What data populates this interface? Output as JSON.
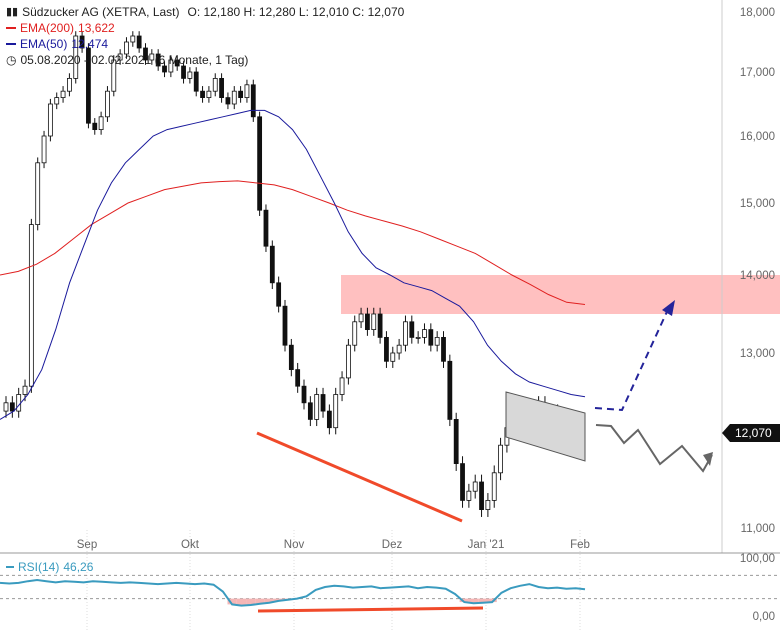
{
  "header": {
    "title": "Südzucker AG (XETRA, Last)",
    "ohlc": "O: 12,180  H: 12,280  L: 12,010  C: 12,070",
    "ema200_label": "EMA(200)",
    "ema200_value": "13,622",
    "ema50_label": "EMA(50)",
    "ema50_value": "12,474",
    "range_text": "05.08.2020 - 02.02.2021  (6 Monate, 1 Tag)"
  },
  "colors": {
    "ema200": "#e02020",
    "ema50": "#1a1a9c",
    "rsi": "#3a9bbf",
    "zone": "#ffc0c0",
    "trendline": "#f04a2a",
    "projection_up": "#24249a",
    "projection_alt": "#666666"
  },
  "price_tag": "12,070",
  "rsi_label": "RSI(14)",
  "rsi_value": "46,26",
  "chart_data": {
    "type": "candlestick",
    "y_axis": {
      "ticks": [
        "18,000",
        "17,000",
        "16,000",
        "15,000",
        "14,000",
        "13,000",
        "12,000",
        "11,000"
      ],
      "ylim": [
        11,
        18
      ]
    },
    "x_axis": {
      "ticks": [
        "Sep",
        "Okt",
        "Nov",
        "Dez",
        "Jan '21",
        "Feb"
      ]
    },
    "rsi_axis": {
      "ticks": [
        "100,00",
        "0,00"
      ]
    },
    "resistance_zone": [
      13.5,
      14.0
    ],
    "close_series": [
      12.4,
      12.3,
      12.5,
      12.6,
      14.7,
      15.6,
      16.0,
      16.5,
      16.6,
      16.7,
      16.9,
      17.6,
      17.4,
      16.2,
      16.1,
      16.3,
      16.7,
      17.2,
      17.3,
      17.5,
      17.6,
      17.4,
      17.2,
      17.3,
      17.1,
      17.0,
      17.2,
      17.1,
      16.9,
      17.0,
      16.7,
      16.6,
      16.7,
      16.9,
      16.6,
      16.5,
      16.7,
      16.6,
      16.8,
      16.3,
      14.9,
      14.4,
      13.9,
      13.6,
      13.1,
      12.8,
      12.6,
      12.4,
      12.2,
      12.5,
      12.3,
      12.1,
      12.5,
      12.7,
      13.1,
      13.4,
      13.5,
      13.3,
      13.5,
      13.2,
      12.9,
      13.0,
      13.1,
      13.4,
      13.2,
      13.2,
      13.3,
      13.1,
      13.2,
      12.9,
      12.2,
      11.7,
      11.3,
      11.4,
      11.5,
      11.2,
      11.3,
      11.6,
      11.9,
      12.1,
      12.4,
      12.3,
      12.2,
      12.3,
      12.4,
      12.2,
      12.3,
      12.1,
      12.2,
      12.0,
      12.1,
      12.07
    ],
    "ema50_series": [
      12.2,
      12.3,
      12.5,
      12.8,
      13.3,
      13.9,
      14.4,
      14.9,
      15.3,
      15.6,
      15.8,
      16.0,
      16.1,
      16.15,
      16.2,
      16.25,
      16.3,
      16.35,
      16.4,
      16.4,
      16.3,
      16.1,
      15.8,
      15.4,
      15.0,
      14.6,
      14.3,
      14.1,
      14.0,
      13.9,
      13.85,
      13.8,
      13.7,
      13.6,
      13.4,
      13.1,
      12.9,
      12.75,
      12.65,
      12.6,
      12.55,
      12.5,
      12.474
    ],
    "ema200_series": [
      14.0,
      14.05,
      14.15,
      14.3,
      14.5,
      14.7,
      14.85,
      15.0,
      15.1,
      15.2,
      15.25,
      15.3,
      15.32,
      15.33,
      15.3,
      15.27,
      15.2,
      15.1,
      15.0,
      14.9,
      14.82,
      14.75,
      14.68,
      14.6,
      14.5,
      14.4,
      14.3,
      14.15,
      14.0,
      13.88,
      13.75,
      13.65,
      13.622
    ],
    "rsi_series": [
      57,
      56,
      57,
      60,
      62,
      60,
      58,
      60,
      59,
      58,
      60,
      59,
      58,
      57,
      58,
      57,
      56,
      55,
      56,
      57,
      56,
      55,
      56,
      54,
      42,
      20,
      18,
      19,
      21,
      23,
      26,
      28,
      30,
      34,
      45,
      50,
      52,
      51,
      49,
      50,
      51,
      48,
      49,
      50,
      51,
      48,
      50,
      49,
      47,
      38,
      24,
      22,
      23,
      24,
      40,
      48,
      52,
      55,
      50,
      48,
      49,
      47,
      48,
      46.26
    ]
  }
}
